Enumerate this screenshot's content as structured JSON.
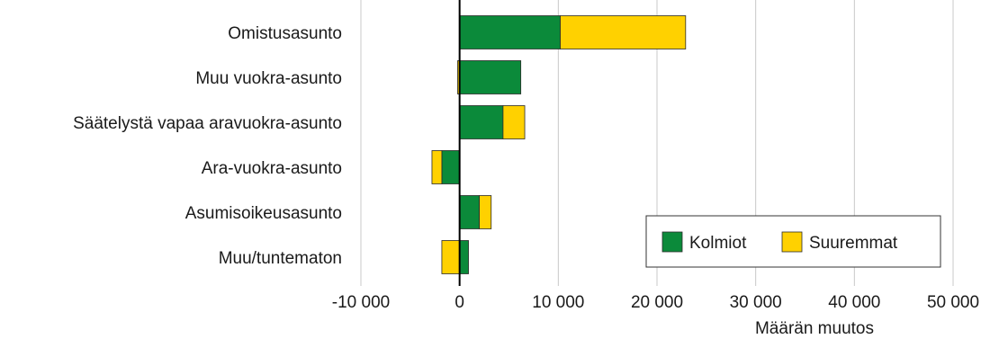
{
  "chart_data": {
    "type": "bar",
    "orientation": "horizontal",
    "stacked": true,
    "title": "",
    "xlabel": "Määrän muutos",
    "ylabel": "",
    "xlim": [
      -10000,
      50000
    ],
    "xticks": [
      -10000,
      0,
      10000,
      20000,
      30000,
      40000,
      50000
    ],
    "xtick_labels": [
      "-10 000",
      "0",
      "10 000",
      "20 000",
      "30 000",
      "40 000",
      "50 000"
    ],
    "grid": "vertical",
    "legend_position": "bottom-right",
    "categories": [
      "Omistusasunto",
      "Muu vuokra-asunto",
      "Säätelystä vapaa aravuokra-asunto",
      "Ara-vuokra-asunto",
      "Asumisoikeusasunto",
      "Muu/tuntematon"
    ],
    "series": [
      {
        "name": "Kolmiot",
        "color": "#0b8a3a",
        "values": [
          10200,
          6200,
          4400,
          -1800,
          2000,
          900
        ]
      },
      {
        "name": "Suuremmat",
        "color": "#ffd100",
        "values": [
          12700,
          -200,
          2200,
          -1000,
          1200,
          -1800
        ]
      }
    ]
  }
}
